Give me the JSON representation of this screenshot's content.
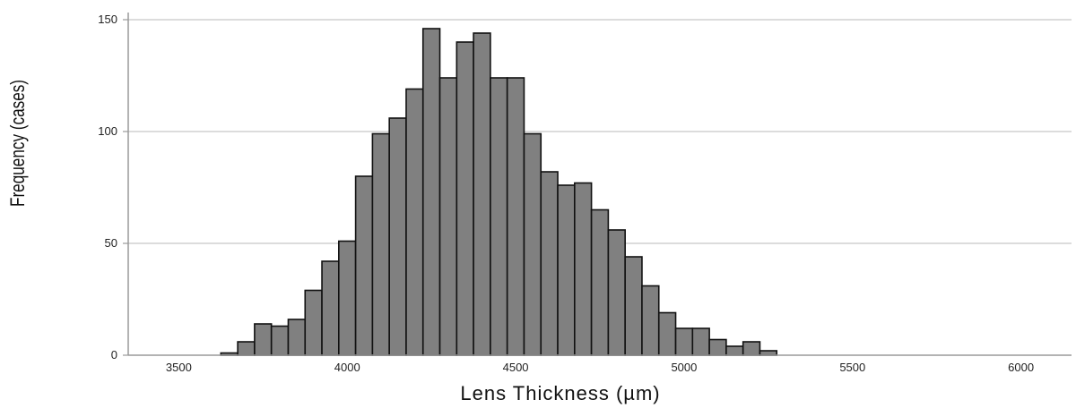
{
  "chart_data": {
    "type": "bar",
    "title": "",
    "xlabel": "Lens Thickness (µm)",
    "ylabel": "Frequency (cases)",
    "bin_width": 50,
    "bin_starts": [
      3575,
      3625,
      3675,
      3725,
      3775,
      3825,
      3875,
      3925,
      3975,
      4025,
      4075,
      4125,
      4175,
      4225,
      4275,
      4325,
      4375,
      4425,
      4475,
      4525,
      4575,
      4625,
      4675,
      4725,
      4775,
      4825,
      4875,
      4925,
      4975,
      5025,
      5075,
      5125,
      5175,
      5225,
      5275,
      5325,
      5375,
      5425,
      5475,
      5525,
      5575,
      5625,
      5675,
      5725,
      5775,
      5825,
      5875
    ],
    "values": [
      0,
      1,
      6,
      14,
      13,
      16,
      29,
      42,
      51,
      80,
      99,
      106,
      119,
      146,
      124,
      140,
      144,
      124,
      124,
      99,
      82,
      76,
      77,
      65,
      56,
      44,
      31,
      19,
      12,
      12,
      7,
      4,
      6,
      2,
      0,
      0,
      0,
      0,
      0,
      0,
      0,
      0,
      0,
      0,
      0,
      0,
      0
    ],
    "xlim": [
      3350,
      6150
    ],
    "ylim": [
      0,
      150
    ],
    "x_ticks": [
      3500,
      4000,
      4500,
      5000,
      5500,
      6000
    ],
    "x_tick_labels": [
      "3500",
      "4000",
      "4500",
      "5000",
      "5500",
      "6000"
    ],
    "y_ticks": [
      0,
      50,
      100,
      150
    ],
    "y_tick_labels": [
      "0",
      "50",
      "100",
      "150"
    ],
    "grid": "horizontal",
    "colors": {
      "bar_fill": "#808080",
      "bar_stroke": "#111111",
      "grid": "#b8b8b8",
      "axis": "#9a9a9a"
    }
  }
}
